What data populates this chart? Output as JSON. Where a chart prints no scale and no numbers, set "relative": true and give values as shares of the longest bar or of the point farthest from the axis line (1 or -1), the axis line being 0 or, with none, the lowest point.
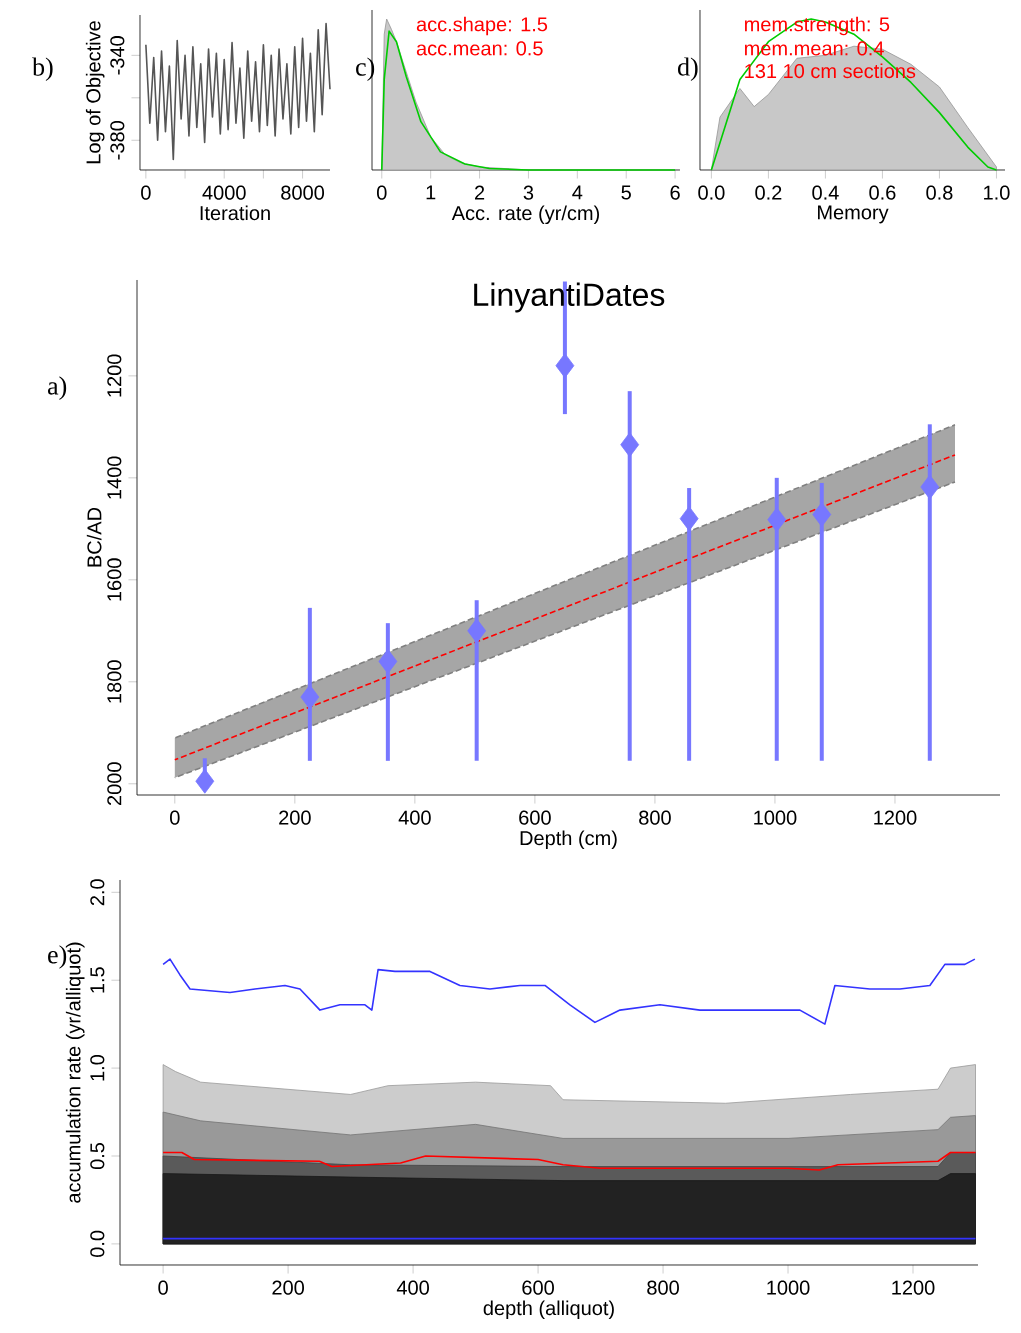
{
  "chart_data": [
    {
      "type": "line",
      "xlabel": "Iteration",
      "ylabel": "Log of Objective",
      "annotations": [
        "b)"
      ],
      "xlim": [
        -300,
        9400
      ],
      "ylim": [
        -394,
        -321
      ],
      "xticks": [
        0,
        {
          "value": 2000,
          "label": null
        },
        4000,
        {
          "value": 6000,
          "label": null
        },
        8000
      ],
      "yticks": [
        -380,
        {
          "value": -360,
          "label": null
        },
        -340
      ],
      "x": [
        0,
        200,
        400,
        600,
        800,
        1000,
        1200,
        1400,
        1600,
        1800,
        2000,
        2200,
        2400,
        2600,
        2800,
        3000,
        3200,
        3400,
        3600,
        3800,
        4000,
        4200,
        4400,
        4600,
        4800,
        5000,
        5200,
        5400,
        5600,
        5800,
        6000,
        6200,
        6400,
        6600,
        6800,
        7000,
        7200,
        7400,
        7600,
        7800,
        8000,
        8200,
        8400,
        8600,
        8800,
        9000,
        9200,
        9400
      ],
      "series": [
        {
          "color": "#555555",
          "values": [
            -335,
            -372,
            -341,
            -380,
            -338,
            -376,
            -345,
            -389,
            -333,
            -370,
            -340,
            -378,
            -336,
            -374,
            -344,
            -381,
            -337,
            -369,
            -339,
            -377,
            -342,
            -375,
            -334,
            -372,
            -346,
            -379,
            -338,
            -371,
            -343,
            -376,
            -335,
            -373,
            -340,
            -378,
            -337,
            -370,
            -344,
            -377,
            -336,
            -374,
            -332,
            -371,
            -339,
            -376,
            -328,
            -368,
            -325,
            -356
          ]
        }
      ]
    },
    {
      "type": "area",
      "relative": true,
      "xlabel": "Acc. rate (yr/cm)",
      "annotations": [
        "c)",
        "acc.shape:  1.5",
        "acc.mean:  0.5"
      ],
      "xlim": [
        -0.2,
        6.1
      ],
      "xticks": [
        0,
        1,
        2,
        3,
        4,
        5,
        6
      ],
      "series": [
        {
          "color": "#c8c8c8",
          "x": [
            0,
            0.05,
            0.1,
            0.2,
            0.3,
            0.5,
            0.7,
            1.0,
            1.3,
            1.6,
            2.0,
            2.5,
            3,
            6
          ],
          "values": [
            0,
            0.9,
            1.0,
            0.93,
            0.85,
            0.65,
            0.45,
            0.22,
            0.1,
            0.05,
            0.02,
            0.01,
            0,
            0
          ]
        },
        {
          "type": "line",
          "color": "#00cc00",
          "x": [
            0,
            0.05,
            0.15,
            0.3,
            0.5,
            0.8,
            1.2,
            1.7,
            2.2,
            3,
            6
          ],
          "values": [
            0,
            0.6,
            0.92,
            0.85,
            0.62,
            0.32,
            0.12,
            0.04,
            0.01,
            0,
            0
          ]
        }
      ]
    },
    {
      "type": "area",
      "relative": true,
      "xlabel": "Memory",
      "annotations": [
        "d)",
        "mem.strength: 5",
        "mem.mean: 0.4",
        "131 10 cm sections"
      ],
      "xlim": [
        -0.04,
        1.03
      ],
      "xticks": [
        "0.0",
        0.2,
        0.4,
        0.6,
        0.8,
        "1.0"
      ],
      "series": [
        {
          "color": "#c8c8c8",
          "x": [
            0,
            0.03,
            0.1,
            0.15,
            0.2,
            0.3,
            0.4,
            0.5,
            0.6,
            0.7,
            0.8,
            0.9,
            1.0
          ],
          "values": [
            0,
            0.35,
            0.54,
            0.42,
            0.5,
            0.74,
            0.76,
            0.82,
            0.8,
            0.7,
            0.55,
            0.28,
            0.02
          ]
        },
        {
          "type": "line",
          "color": "#00cc00",
          "x": [
            0,
            0.05,
            0.1,
            0.2,
            0.3,
            0.35,
            0.4,
            0.5,
            0.6,
            0.7,
            0.8,
            0.9,
            0.97,
            1.0
          ],
          "values": [
            0,
            0.3,
            0.6,
            0.85,
            0.98,
            1.0,
            0.98,
            0.9,
            0.75,
            0.58,
            0.38,
            0.15,
            0.02,
            0
          ]
        }
      ]
    },
    {
      "type": "line",
      "title": "LinyantiDates",
      "xlabel": "Depth (cm)",
      "ylabel": "BC/AD",
      "annotations": [
        "a)"
      ],
      "xlim": [
        -63,
        1375
      ],
      "ylim": [
        2022,
        1012
      ],
      "xticks": [
        0,
        200,
        400,
        600,
        800,
        1000,
        1200
      ],
      "yticks": [
        1200,
        1400,
        1600,
        1800,
        2000
      ],
      "series": [
        {
          "color": "#ff0000",
          "line_style": "dashed",
          "x": [
            0,
            1300
          ],
          "values": [
            1953,
            1355
          ],
          "lower": [
            1910,
            1296
          ],
          "upper": [
            1988,
            1408
          ]
        },
        {
          "color": "#808080",
          "line_style": "dashed",
          "x": [
            0,
            1300
          ],
          "values": [
            1910,
            1296
          ]
        },
        {
          "color": "#808080",
          "line_style": "dashed",
          "x": [
            0,
            1300
          ],
          "values": [
            1988,
            1408
          ]
        },
        {
          "type": "scatter",
          "marker": "diamond",
          "color": "#7777ff",
          "x": [
            50,
            225,
            355,
            503,
            650,
            758,
            857,
            1003,
            1078,
            1258
          ],
          "values": [
            1995,
            1830,
            1760,
            1700,
            1180,
            1335,
            1480,
            1482,
            1472,
            1418
          ],
          "errors": [
            [
              1950,
              2010
            ],
            [
              1655,
              1955
            ],
            [
              1685,
              1955
            ],
            [
              1640,
              1955
            ],
            [
              1015,
              1275
            ],
            [
              1230,
              1955
            ],
            [
              1420,
              1955
            ],
            [
              1400,
              1955
            ],
            [
              1410,
              1955
            ],
            [
              1295,
              1955
            ]
          ]
        }
      ]
    },
    {
      "type": "line",
      "xlabel": "depth (alliquot)",
      "ylabel": "accumulation rate (yr/alliquot)",
      "annotations": [
        "e)"
      ],
      "xlim": [
        -69,
        1304
      ],
      "ylim": [
        -0.12,
        2.07
      ],
      "xticks": [
        0,
        200,
        400,
        600,
        800,
        1000,
        1200
      ],
      "yticks": [
        "0.0",
        0.5,
        "1.0",
        1.5,
        "2.0"
      ],
      "series": [
        {
          "type": "area",
          "color": "#cccccc",
          "x": [
            0,
            20,
            60,
            300,
            360,
            500,
            620,
            640,
            900,
            1100,
            1240,
            1260,
            1300
          ],
          "values": [
            1.02,
            0.98,
            0.92,
            0.85,
            0.9,
            0.92,
            0.9,
            0.82,
            0.8,
            0.85,
            0.88,
            1.0,
            1.02
          ]
        },
        {
          "type": "area",
          "color": "#999999",
          "x": [
            0,
            60,
            300,
            500,
            640,
            1000,
            1240,
            1260,
            1300
          ],
          "values": [
            0.75,
            0.7,
            0.62,
            0.68,
            0.6,
            0.6,
            0.65,
            0.72,
            0.73
          ]
        },
        {
          "type": "area",
          "color": "#5a5a5a",
          "x": [
            0,
            300,
            640,
            1240,
            1260,
            1300
          ],
          "values": [
            0.5,
            0.45,
            0.44,
            0.44,
            0.52,
            0.52
          ]
        },
        {
          "type": "area",
          "color": "#222222",
          "x": [
            0,
            300,
            640,
            1240,
            1260,
            1300
          ],
          "values": [
            0.4,
            0.38,
            0.36,
            0.36,
            0.4,
            0.4
          ]
        },
        {
          "color": "#3333ff",
          "x": [
            0,
            11,
            27,
            43,
            107,
            147,
            195,
            219,
            251,
            283,
            323,
            334,
            344,
            371,
            427,
            475,
            523,
            571,
            611,
            651,
            691,
            731,
            795,
            859,
            923,
            987,
            1019,
            1059,
            1075,
            1131,
            1179,
            1227,
            1251,
            1283,
            1299
          ],
          "values": [
            1.59,
            1.62,
            1.53,
            1.45,
            1.43,
            1.45,
            1.47,
            1.45,
            1.33,
            1.36,
            1.36,
            1.33,
            1.56,
            1.55,
            1.55,
            1.47,
            1.45,
            1.47,
            1.47,
            1.36,
            1.26,
            1.33,
            1.36,
            1.33,
            1.33,
            1.33,
            1.33,
            1.25,
            1.47,
            1.45,
            1.45,
            1.47,
            1.59,
            1.59,
            1.62
          ]
        },
        {
          "color": "#ff0000",
          "x": [
            0,
            30,
            50,
            250,
            270,
            380,
            420,
            600,
            640,
            700,
            1000,
            1050,
            1080,
            1240,
            1260,
            1300
          ],
          "values": [
            0.52,
            0.52,
            0.48,
            0.47,
            0.44,
            0.46,
            0.5,
            0.48,
            0.45,
            0.43,
            0.43,
            0.42,
            0.45,
            0.47,
            0.52,
            0.52
          ]
        },
        {
          "color": "#3333ff",
          "x": [
            0,
            1300
          ],
          "values": [
            0.03,
            0.03
          ]
        }
      ]
    }
  ]
}
